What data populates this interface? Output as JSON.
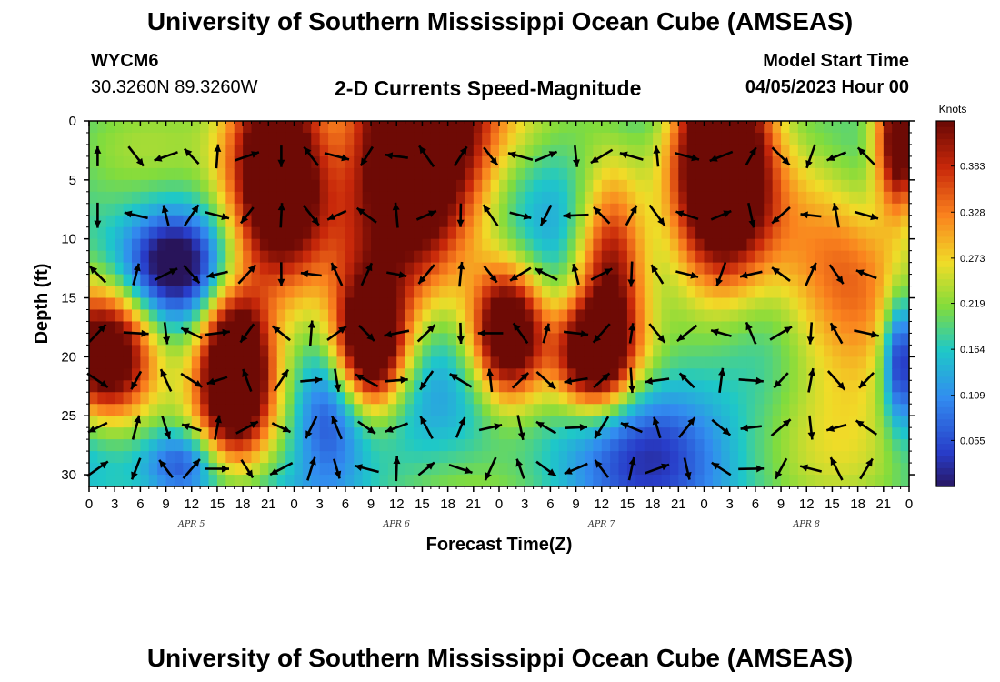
{
  "header": {
    "title": "University of Southern Mississippi Ocean Cube (AMSEAS)",
    "station_id": "WYCM6",
    "coordinates": "30.3260N  89.3260W",
    "subtitle": "2-D Currents Speed-Magnitude",
    "model_start_label": "Model Start Time",
    "model_start_value": "04/05/2023 Hour 00"
  },
  "footer": {
    "title": "University of Southern Mississippi Ocean Cube (AMSEAS)"
  },
  "chart_data": {
    "type": "heatmap",
    "title": "2-D Currents Speed-Magnitude",
    "xlabel": "Forecast Time(Z)",
    "ylabel": "Depth (ft)",
    "xlim": [
      0,
      96
    ],
    "ylim": [
      31,
      0
    ],
    "x_tick_labels": [
      "0",
      "3",
      "6",
      "9",
      "12",
      "15",
      "18",
      "21",
      "0",
      "3",
      "6",
      "9",
      "12",
      "15",
      "18",
      "21",
      "0",
      "3",
      "6",
      "9",
      "12",
      "15",
      "18",
      "21",
      "0",
      "3",
      "6",
      "9",
      "12",
      "15",
      "18",
      "21",
      "0"
    ],
    "y_ticks": [
      0,
      5,
      10,
      15,
      20,
      25,
      30
    ],
    "day_labels": [
      {
        "label": "APR 5",
        "hour": 12
      },
      {
        "label": "APR 6",
        "hour": 36
      },
      {
        "label": "APR 7",
        "hour": 60
      },
      {
        "label": "APR 8",
        "hour": 84
      }
    ],
    "colorbar": {
      "units": "Knots",
      "min": 0.0,
      "max": 0.437,
      "tick_labels": [
        "0.383",
        "0.328",
        "0.273",
        "0.219",
        "0.164",
        "0.109",
        "0.055"
      ],
      "tick_values": [
        0.383,
        0.328,
        0.273,
        0.219,
        0.164,
        0.109,
        0.055
      ]
    },
    "vector_columns_hours": [
      1,
      5.5,
      9,
      12,
      15,
      18.5,
      22.5,
      26,
      29,
      32.5,
      36,
      39.5,
      43.5,
      47,
      50.5,
      53.5,
      57,
      60,
      63.5,
      66.5,
      70,
      74,
      77.5,
      81,
      84.5,
      87.5,
      91
    ],
    "vector_rows_depth_ft": [
      3,
      8,
      13,
      18,
      22,
      26,
      29.5
    ]
  }
}
